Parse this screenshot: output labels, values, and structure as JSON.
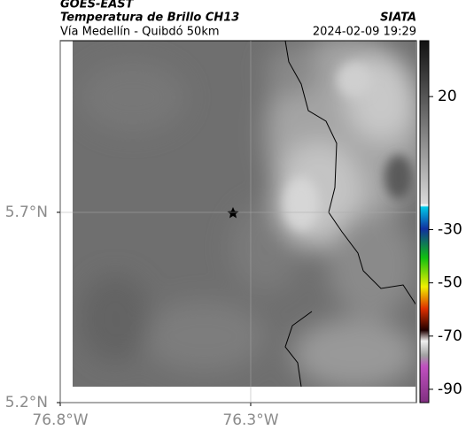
{
  "header": {
    "source": "GOES-EAST",
    "title": "Temperatura de Brillo CH13",
    "org": "SIATA",
    "subtitle": "Vía Medellín - Quibdó 50km",
    "datetime": "2024-02-09 19:29"
  },
  "map": {
    "xlim": [
      -76.8,
      -75.865
    ],
    "ylim": [
      5.2,
      6.151
    ],
    "xticks": [
      {
        "value": -76.8,
        "label": "76.8°W"
      },
      {
        "value": -76.3,
        "label": "76.3°W"
      }
    ],
    "yticks": [
      {
        "value": 5.2,
        "label": "5.2°N"
      },
      {
        "value": 5.7,
        "label": "5.7°N"
      }
    ],
    "grid": true
  },
  "colorbar": {
    "clim": [
      41,
      -95
    ],
    "ticks": [
      20,
      -30,
      -50,
      -70,
      -90
    ]
  }
}
